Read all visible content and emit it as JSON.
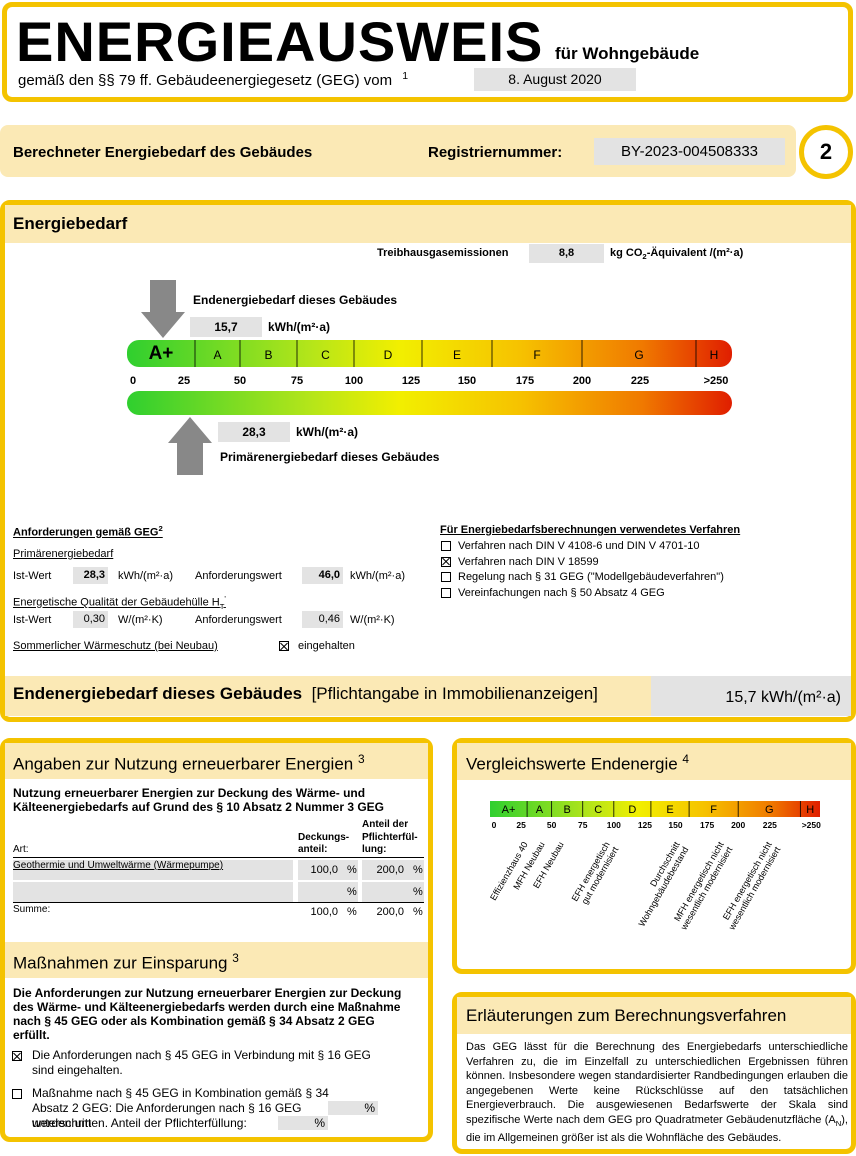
{
  "header": {
    "title": "ENERGIEAUSWEIS",
    "subtitle": "für Wohngebäude",
    "basis": "gemäß den §§ 79 ff. Gebäudeenergiegesetz (GEG) vom",
    "footnote": "1",
    "date": "8. August 2020"
  },
  "banner": {
    "label": "Berechneter Energiebedarf des Gebäudes",
    "registration_label": "Registriernummer:",
    "registration_number": "BY-2023-004508333",
    "page": "2"
  },
  "energy": {
    "title": "Energiebedarf",
    "ghg_label": "Treibhausgasemissionen",
    "ghg_value": "8,8",
    "ghg_unit_pre": "kg CO",
    "ghg_unit_sub": "2",
    "ghg_unit_post": "-Äquivalent /(m²·a)",
    "final_label": "Endenergiebedarf dieses Gebäudes",
    "final_value": "15,7",
    "final_unit": "kWh/(m²·a)",
    "primary_label": "Primärenergiebedarf dieses Gebäudes",
    "primary_value": "28,3",
    "primary_unit": "kWh/(m²·a)",
    "classes": [
      "A+",
      "A",
      "B",
      "C",
      "D",
      "E",
      "F",
      "G",
      "H"
    ],
    "ticks": [
      "0",
      "25",
      "50",
      "75",
      "100",
      "125",
      "150",
      "175",
      "200",
      "225",
      ">250"
    ]
  },
  "requirements": {
    "title": "Anforderungen gemäß GEG",
    "footnote": "2",
    "primary_title": "Primärenergiebedarf",
    "actual_label": "Ist-Wert",
    "required_label": "Anforderungswert",
    "primary_actual": "28,3",
    "primary_required": "46,0",
    "primary_unit": "kWh/(m²·a)",
    "envelope_title": "Energetische Qualität der Gebäudehülle H",
    "envelope_sub": "T",
    "envelope_sup": "'",
    "envelope_actual": "0,30",
    "envelope_required": "0,46",
    "envelope_unit": "W/(m²·K)",
    "summer_title": "Sommerlicher Wärmeschutz (bei Neubau)",
    "summer_checked": true,
    "summer_label": "eingehalten"
  },
  "methods": {
    "title": "Für Energiebedarfsberechnungen verwendetes Verfahren",
    "items": [
      {
        "label": "Verfahren nach DIN V 4108-6 und DIN V 4701-10",
        "checked": false
      },
      {
        "label": "Verfahren nach DIN V 18599",
        "checked": true
      },
      {
        "label": "Regelung nach § 31 GEG (\"Modellgebäudeverfahren\")",
        "checked": false
      },
      {
        "label": "Vereinfachungen nach § 50 Absatz 4 GEG",
        "checked": false
      }
    ]
  },
  "final": {
    "label": "Endenergiebedarf dieses Gebäudes",
    "note": "[Pflichtangabe in Immobilienanzeigen]",
    "value": "15,7 kWh/(m²·a)"
  },
  "renewables": {
    "title": "Angaben zur Nutzung erneuerbarer Energien",
    "footnote": "3",
    "intro": "Nutzung erneuerbarer Energien zur Deckung des Wärme- und Kälteenergiebedarfs auf Grund des § 10 Absatz 2 Nummer 3 GEG",
    "headers": [
      [
        "Art:"
      ],
      [
        "Deckungs-",
        "anteil:"
      ],
      [
        "Anteil der",
        "Pflichterfül-",
        "lung:"
      ]
    ],
    "rows": [
      [
        "Geothermie und Umweltwärme (Wärmepumpe)",
        "100,0",
        "%",
        "200,0",
        "%"
      ],
      [
        "",
        "",
        "%",
        "",
        "%"
      ]
    ],
    "sum": [
      "Summe:",
      "100,0",
      "%",
      "200,0",
      "%"
    ]
  },
  "measures": {
    "title": "Maßnahmen zur Einsparung",
    "footnote": "3",
    "intro": "Die Anforderungen zur Nutzung erneuerbarer Energien zur Deckung des Wärme- und Kälteenergiebedarfs werden durch eine Maßnahme nach § 45 GEG oder als Kombination gemäß § 34 Absatz 2 GEG erfüllt.",
    "items": [
      {
        "label": "Die Anforderungen nach § 45 GEG in Verbindung mit § 16 GEG sind eingehalten.",
        "checked": true
      },
      {
        "label": "Maßnahme nach § 45 GEG in Kombination gemäß § 34 Absatz 2 GEG: Die Anforderungen nach § 16 GEG werden um",
        "unit": "%",
        "label2": "unterschritten. Anteil der Pflichterfüllung:",
        "unit2": "%",
        "checked": false
      }
    ]
  },
  "comparison": {
    "title": "Vergleichswerte Endenergie",
    "footnote": "4",
    "classes": [
      "A+",
      "A",
      "B",
      "C",
      "D",
      "E",
      "F",
      "G",
      "H"
    ],
    "ticks": [
      "0",
      "25",
      "50",
      "75",
      "100",
      "125",
      "150",
      "175",
      "200",
      "225",
      ">250"
    ],
    "labels": [
      [
        "Effizienzhaus 40"
      ],
      [
        "MFH Neubau"
      ],
      [
        "EFH Neubau"
      ],
      [
        "EFH energetisch",
        "gut modernisiert"
      ],
      [
        "Durchschnitt",
        "Wohngebäudebestand"
      ],
      [
        "MFH energetisch nicht",
        "wesentlich modernisiert"
      ],
      [
        "EFH energetisch nicht",
        "wesentlich modernisiert"
      ]
    ]
  },
  "explanation": {
    "title": "Erläuterungen zum Berechnungsverfahren",
    "text": "Das GEG lässt für die Berechnung des Energiebedarfs unterschiedliche Verfahren zu, die im Einzelfall zu unterschiedlichen Ergebnissen führen können. Insbesondere wegen standardisierter Randbedingungen erlauben die angegebenen Werte keine Rückschlüsse auf den tatsächlichen Energieverbrauch. Die ausgewiesenen Bedarfswerte der Skala sind spezifische Werte nach dem GEG pro Quadratmeter Gebäudenutzfläche (A",
    "sub": "N",
    "tail": "), die im Allgemeinen größer ist als die Wohnfläche des Gebäudes."
  }
}
